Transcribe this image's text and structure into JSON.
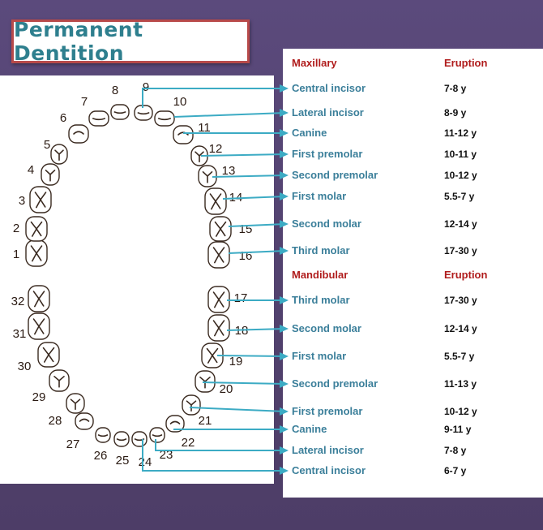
{
  "title": "Permanent Dentition",
  "maxillary": {
    "header": "Maxillary",
    "eruption_header": "Eruption",
    "rows": [
      {
        "tooth": "Central incisor",
        "eruption": "7-8 y"
      },
      {
        "tooth": "Lateral incisor",
        "eruption": "8-9 y"
      },
      {
        "tooth": "Canine",
        "eruption": "11-12 y"
      },
      {
        "tooth": "First premolar",
        "eruption": "10-11 y"
      },
      {
        "tooth": "Second premolar",
        "eruption": "10-12 y"
      },
      {
        "tooth": "First molar",
        "eruption": "5.5-7 y"
      },
      {
        "tooth": "Second molar",
        "eruption": "12-14 y"
      },
      {
        "tooth": "Third molar",
        "eruption": "17-30 y"
      }
    ]
  },
  "mandibular": {
    "header": "Mandibular",
    "eruption_header": "Eruption",
    "rows": [
      {
        "tooth": "Third molar",
        "eruption": "17-30 y"
      },
      {
        "tooth": "Second molar",
        "eruption": "12-14 y"
      },
      {
        "tooth": "First molar",
        "eruption": "5.5-7 y"
      },
      {
        "tooth": "Second premolar",
        "eruption": "11-13 y"
      },
      {
        "tooth": "First premolar",
        "eruption": "10-12 y"
      },
      {
        "tooth": "Canine",
        "eruption": "9-11 y"
      },
      {
        "tooth": "Lateral incisor",
        "eruption": "7-8 y"
      },
      {
        "tooth": "Central incisor",
        "eruption": "6-7 y"
      }
    ]
  },
  "tooth_numbers": [
    "1",
    "2",
    "3",
    "4",
    "5",
    "6",
    "7",
    "8",
    "9",
    "10",
    "11",
    "12",
    "13",
    "14",
    "15",
    "16",
    "17",
    "18",
    "19",
    "20",
    "21",
    "22",
    "23",
    "24",
    "25",
    "26",
    "27",
    "28",
    "29",
    "30",
    "31",
    "32"
  ],
  "colors": {
    "accent": "#3cabc4",
    "label": "#3b7f9a",
    "header": "#b01c1c",
    "title": "#2e7f8e",
    "frame": "#b84a4a"
  }
}
